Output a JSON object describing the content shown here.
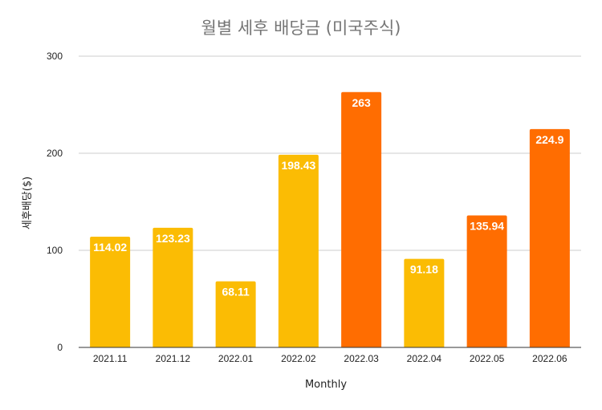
{
  "chart_data": {
    "type": "bar",
    "title": "월별 세후 배당금 (미국주식)",
    "xlabel": "Monthly",
    "ylabel": "세후배당($)",
    "categories": [
      "2021.11",
      "2021.12",
      "2022.01",
      "2022.02",
      "2022.03",
      "2022.04",
      "2022.05",
      "2022.06"
    ],
    "values": [
      114.02,
      123.23,
      68.11,
      198.43,
      263,
      91.18,
      135.94,
      224.9
    ],
    "value_labels": [
      "114.02",
      "123.23",
      "68.11",
      "198.43",
      "263",
      "91.18",
      "135.94",
      "224.9"
    ],
    "bar_colors": [
      "#fbbc04",
      "#fbbc04",
      "#fbbc04",
      "#fbbc04",
      "#ff6d01",
      "#fbbc04",
      "#ff6d01",
      "#ff6d01"
    ],
    "ylim": [
      0,
      300
    ],
    "yticks": [
      0,
      100,
      200,
      300
    ],
    "ytick_labels": [
      "0",
      "100",
      "200",
      "300"
    ],
    "grid": true,
    "legend": "none"
  }
}
